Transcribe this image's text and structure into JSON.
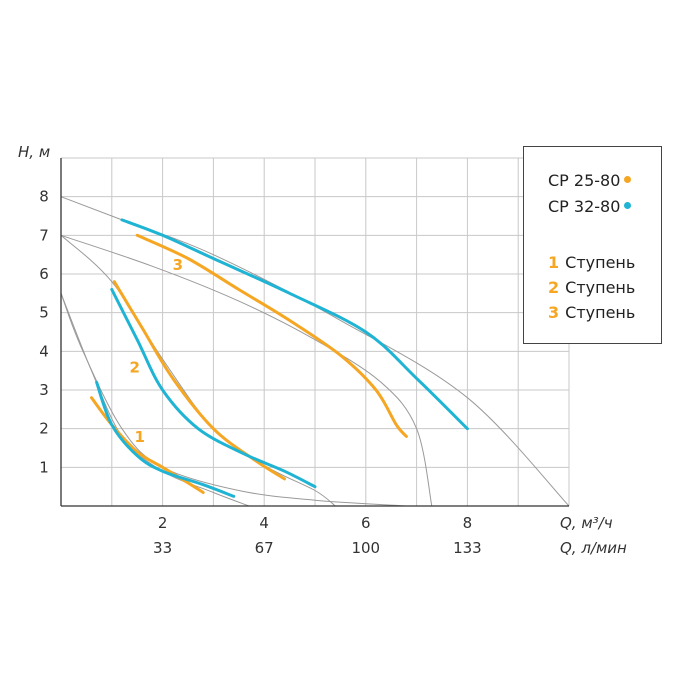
{
  "chart_data": {
    "type": "line",
    "ylabel": "H, м",
    "xlabel": "Q, м³/ч",
    "xlabel_secondary": "Q, л/мин",
    "xlim": [
      0,
      10
    ],
    "ylim": [
      0,
      9
    ],
    "y_ticks": [
      "1",
      "2",
      "3",
      "4",
      "5",
      "6",
      "7",
      "8"
    ],
    "y_tick_values": [
      1,
      2,
      3,
      4,
      5,
      6,
      7,
      8
    ],
    "x_ticks": [
      {
        "value": 2,
        "label": "2",
        "label2": "33"
      },
      {
        "value": 4,
        "label": "4",
        "label2": "67"
      },
      {
        "value": 6,
        "label": "6",
        "label2": "100"
      },
      {
        "value": 8,
        "label": "8",
        "label2": "133"
      }
    ],
    "grid": true,
    "colors": {
      "cp25": "#f5a623",
      "cp32": "#1fb4d3",
      "ref": "#9a9a9a",
      "grid": "#c8c8c8"
    },
    "reference_curves": [
      [
        [
          0,
          8
        ],
        [
          1.2,
          7.4
        ],
        [
          3,
          6.5
        ],
        [
          5.5,
          4.8
        ],
        [
          8,
          2.8
        ],
        [
          10,
          0
        ]
      ],
      [
        [
          0,
          7
        ],
        [
          1.8,
          6.2
        ],
        [
          3.5,
          5.3
        ],
        [
          5,
          4.3
        ],
        [
          6.3,
          3.2
        ],
        [
          7,
          2
        ],
        [
          7.3,
          0
        ]
      ],
      [
        [
          0,
          7
        ],
        [
          1,
          5.8
        ],
        [
          2,
          3.8
        ],
        [
          3,
          2
        ],
        [
          4,
          1.05
        ],
        [
          5,
          0.4
        ],
        [
          5.4,
          0
        ]
      ],
      [
        [
          0,
          5.5
        ],
        [
          0.6,
          3.5
        ],
        [
          1.2,
          1.8
        ],
        [
          2,
          0.9
        ],
        [
          3,
          0.35
        ],
        [
          3.7,
          0
        ]
      ],
      [
        [
          0,
          5.5
        ],
        [
          0.4,
          4.1
        ],
        [
          1.2,
          2
        ],
        [
          2,
          1
        ],
        [
          3.5,
          0.4
        ],
        [
          5,
          0.15
        ],
        [
          6.8,
          0
        ]
      ]
    ],
    "series": [
      {
        "name": "CP 25-80",
        "color": "#f5a623",
        "stage": "1",
        "points": [
          [
            0.6,
            2.8
          ],
          [
            1,
            2.1
          ],
          [
            1.5,
            1.4
          ],
          [
            2,
            1.0
          ],
          [
            2.5,
            0.6
          ],
          [
            2.8,
            0.35
          ]
        ]
      },
      {
        "name": "CP 32-80",
        "color": "#1fb4d3",
        "stage": "1",
        "points": [
          [
            0.7,
            3.2
          ],
          [
            1,
            2.1
          ],
          [
            1.5,
            1.3
          ],
          [
            2,
            0.9
          ],
          [
            2.8,
            0.55
          ],
          [
            3.4,
            0.25
          ]
        ]
      },
      {
        "name": "CP 25-80",
        "color": "#f5a623",
        "stage": "2",
        "points": [
          [
            1.05,
            5.8
          ],
          [
            1.6,
            4.6
          ],
          [
            2.2,
            3.3
          ],
          [
            3,
            2.0
          ],
          [
            3.8,
            1.2
          ],
          [
            4.4,
            0.7
          ]
        ]
      },
      {
        "name": "CP 32-80",
        "color": "#1fb4d3",
        "stage": "2",
        "points": [
          [
            1.0,
            5.6
          ],
          [
            1.5,
            4.3
          ],
          [
            2,
            3.0
          ],
          [
            2.7,
            2.0
          ],
          [
            3.6,
            1.35
          ],
          [
            4.4,
            0.9
          ],
          [
            5,
            0.5
          ]
        ]
      },
      {
        "name": "CP 25-80",
        "color": "#f5a623",
        "stage": "3",
        "points": [
          [
            1.5,
            7.0
          ],
          [
            2.5,
            6.4
          ],
          [
            3.5,
            5.6
          ],
          [
            4.5,
            4.8
          ],
          [
            5.5,
            3.9
          ],
          [
            6.2,
            3.0
          ],
          [
            6.6,
            2.1
          ],
          [
            6.8,
            1.8
          ]
        ]
      },
      {
        "name": "CP 32-80",
        "color": "#1fb4d3",
        "stage": "3",
        "points": [
          [
            1.2,
            7.4
          ],
          [
            2,
            7.0
          ],
          [
            3,
            6.4
          ],
          [
            4.5,
            5.5
          ],
          [
            6,
            4.5
          ],
          [
            7,
            3.3
          ],
          [
            8,
            2.0
          ]
        ]
      }
    ],
    "stage_labels": [
      {
        "text": "1",
        "x": 1.55,
        "y": 1.65
      },
      {
        "text": "2",
        "x": 1.45,
        "y": 3.45
      },
      {
        "text": "3",
        "x": 2.3,
        "y": 6.1
      }
    ],
    "legend": {
      "position": "top-right",
      "models": [
        {
          "label": "CP 25-80",
          "color": "#f5a623"
        },
        {
          "label": "CP 32-80",
          "color": "#1fb4d3"
        }
      ],
      "stages": [
        {
          "num": "1",
          "label": "Ступень"
        },
        {
          "num": "2",
          "label": "Ступень"
        },
        {
          "num": "3",
          "label": "Ступень"
        }
      ]
    }
  }
}
